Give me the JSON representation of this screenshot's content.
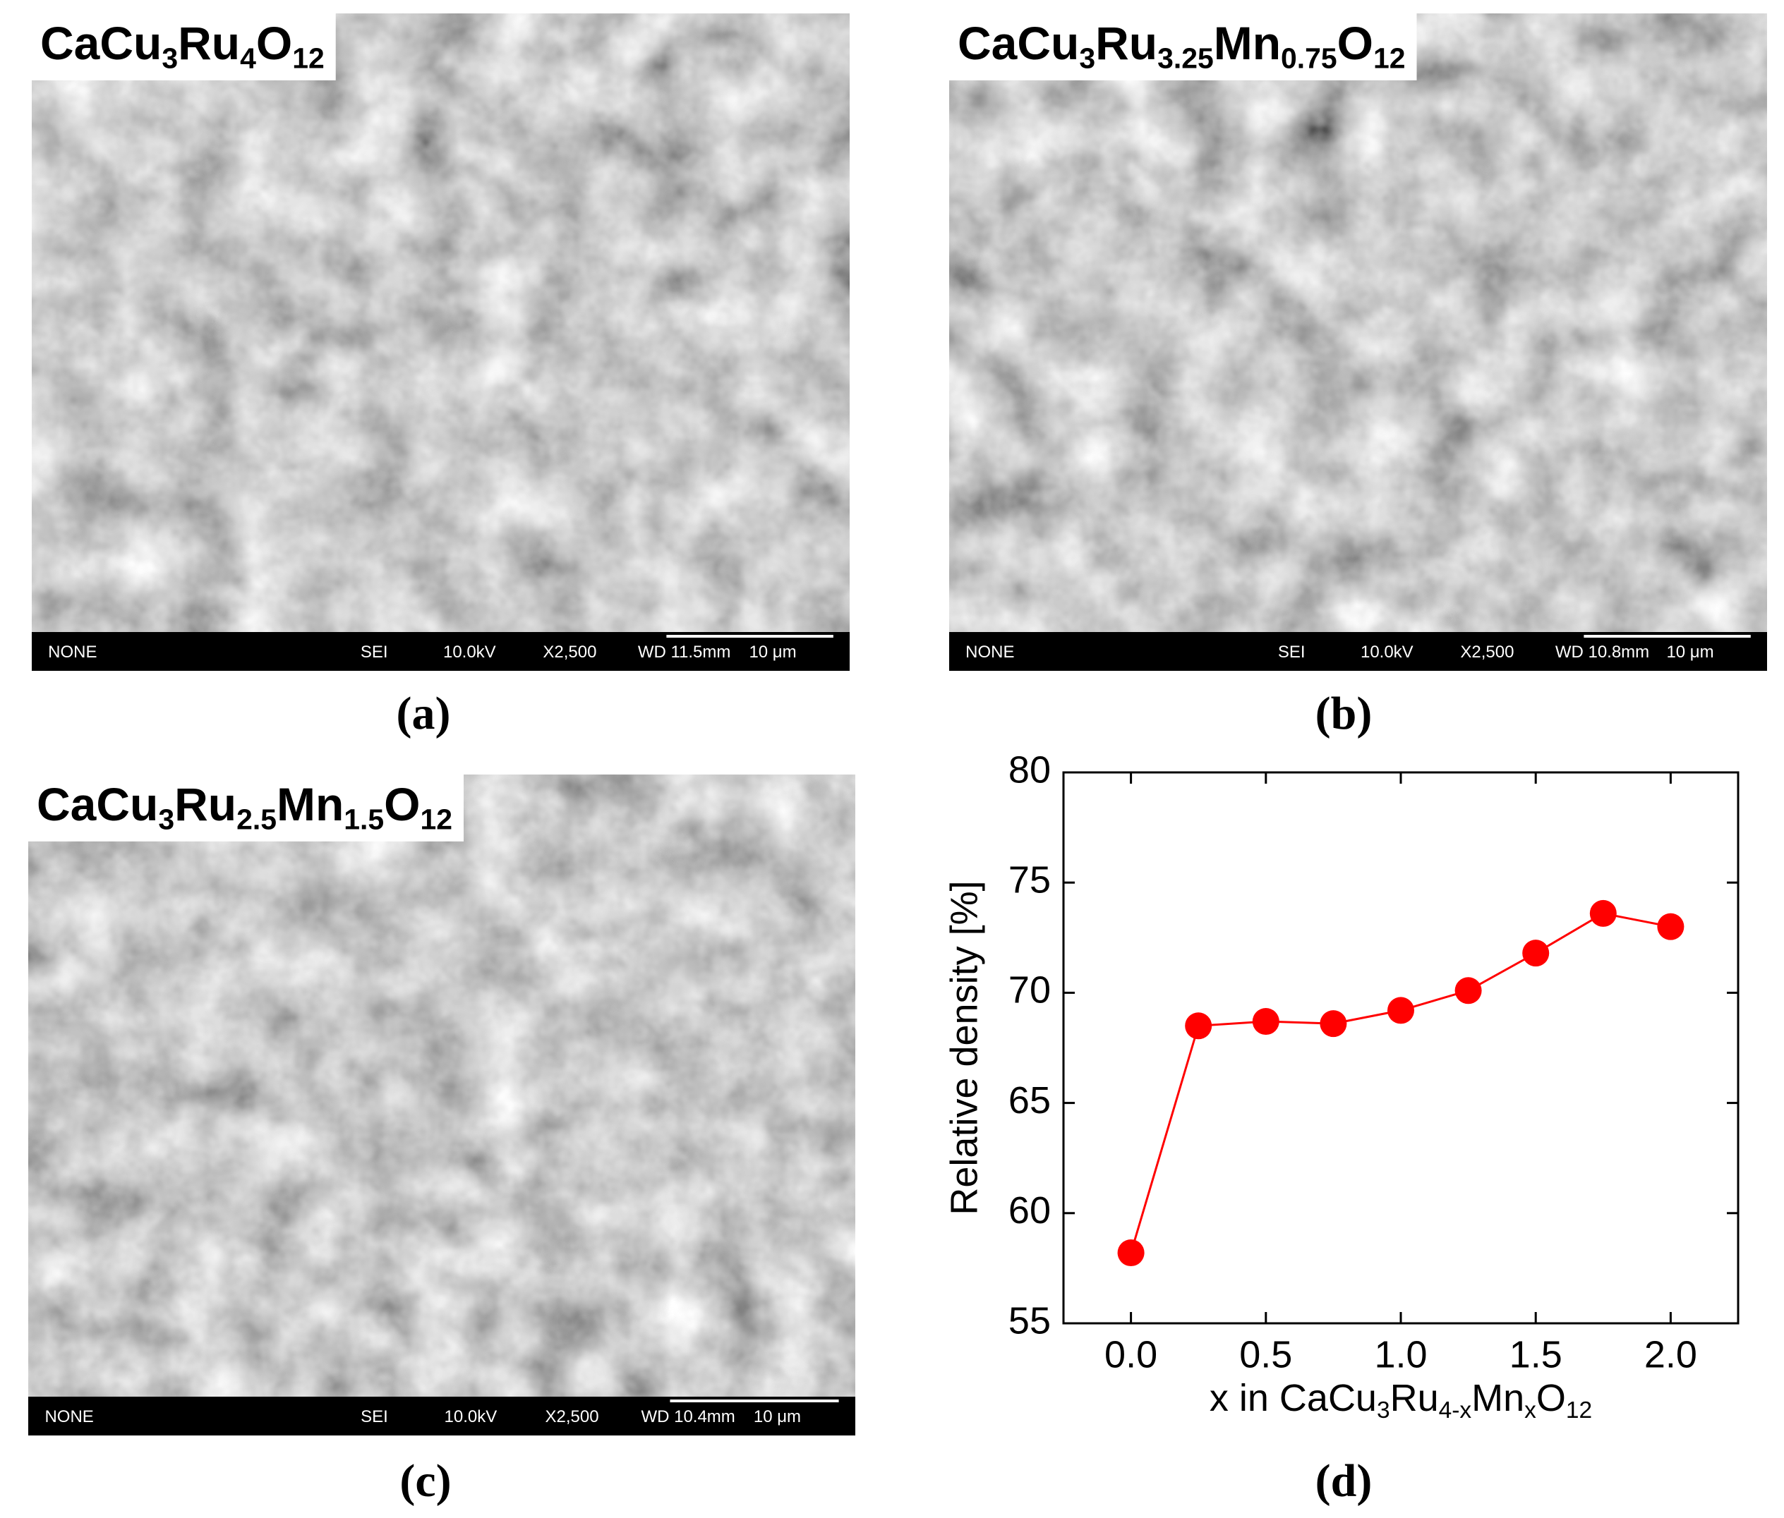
{
  "panels": [
    {
      "formula": [
        "CaCu",
        "3",
        "Ru",
        "4",
        "O",
        "12"
      ],
      "info": [
        "NONE",
        "SEI",
        "10.0kV",
        "X2,500",
        "WD 11.5mm",
        "10 μm"
      ],
      "label": "(a)"
    },
    {
      "formula": [
        "CaCu",
        "3",
        "Ru",
        "3.25",
        "Mn",
        "0.75",
        "O",
        "12"
      ],
      "info": [
        "NONE",
        "SEI",
        "10.0kV",
        "X2,500",
        "WD 10.8mm",
        "10 μm"
      ],
      "label": "(b)"
    },
    {
      "formula": [
        "CaCu",
        "3",
        "Ru",
        "2.5",
        "Mn",
        "1.5",
        "O",
        "12"
      ],
      "info": [
        "NONE",
        "SEI",
        "10.0kV",
        "X2,500",
        "WD 10.4mm",
        "10 μm"
      ],
      "label": "(c)"
    }
  ],
  "chart_data": {
    "type": "line",
    "label": "(d)",
    "x_label": [
      "x in CaCu",
      "3",
      "Ru",
      "4-x",
      "Mn",
      "x",
      "O",
      "12"
    ],
    "y_label": "Relative density [%]",
    "x": [
      0,
      0.25,
      0.5,
      0.75,
      1.0,
      1.25,
      1.5,
      1.75,
      2.0
    ],
    "values": [
      58.2,
      68.5,
      68.7,
      68.6,
      69.2,
      70.1,
      71.8,
      73.6,
      73.0
    ],
    "color": "#ff0000",
    "xlim": [
      -0.25,
      2.25
    ],
    "xticks": [
      {
        "value": 0,
        "label": "0.0"
      },
      {
        "value": 0.5,
        "label": "0.5"
      },
      {
        "value": 1,
        "label": "1.0"
      },
      {
        "value": 1.5,
        "label": "1.5"
      },
      {
        "value": 2,
        "label": "2.0"
      }
    ],
    "ylim": [
      55,
      80
    ],
    "yticks": [
      55,
      60,
      65,
      70,
      75,
      80
    ]
  }
}
